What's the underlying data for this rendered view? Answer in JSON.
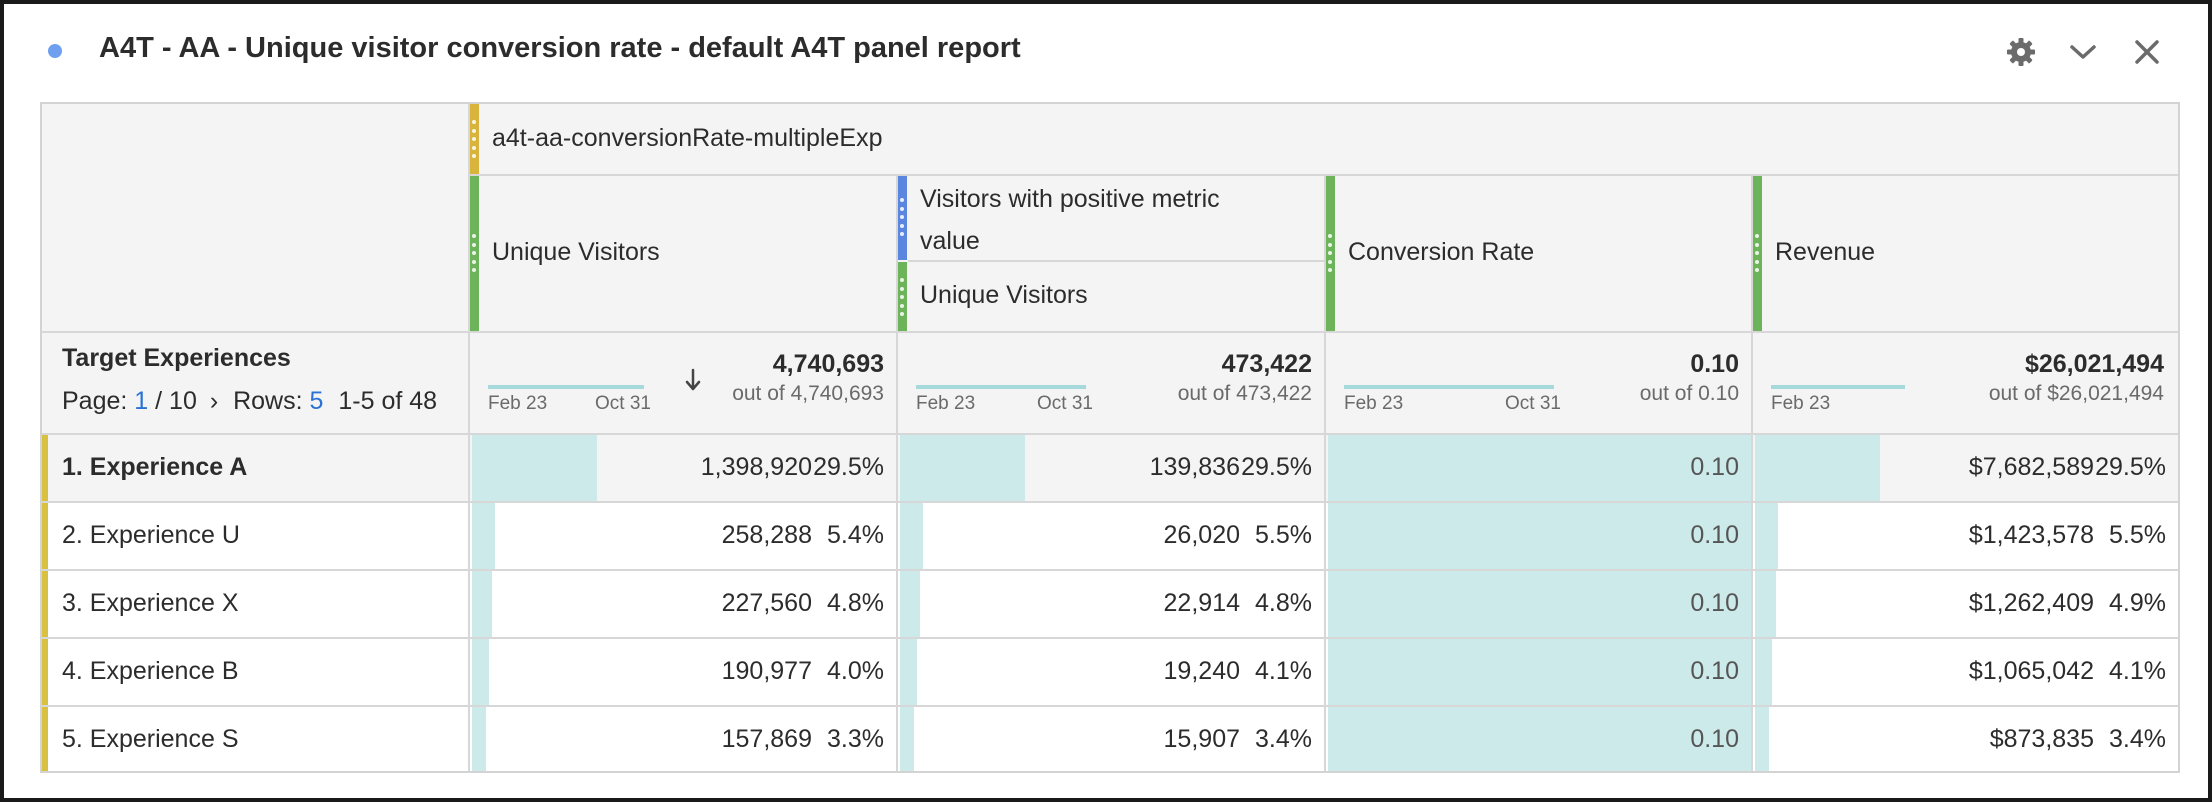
{
  "panel": {
    "title": "A4T - AA - Unique visitor conversion rate - default A4T panel report",
    "icons": [
      "gear-icon",
      "chevron-down-icon",
      "close-icon"
    ]
  },
  "segment": {
    "label": "a4t-aa-conversionRate-multipleExp",
    "color": "#d8b43c"
  },
  "columns": [
    {
      "label": "Unique Visitors",
      "total": "4,740,693",
      "out_of": "out of 4,740,693",
      "spark_start": "Feb 23",
      "spark_end": "Oct 31",
      "sorted": true
    },
    {
      "label_top": "Visitors with positive metric value",
      "label": "Unique Visitors",
      "total": "473,422",
      "out_of": "out of 473,422",
      "spark_start": "Feb 23",
      "spark_end": "Oct 31"
    },
    {
      "label": "Conversion Rate",
      "total": "0.10",
      "out_of": "out of 0.10",
      "spark_start": "Feb 23",
      "spark_end": "Oct 31"
    },
    {
      "label": "Revenue",
      "total": "$26,021,494",
      "out_of": "out of $26,021,494",
      "spark_start": "Feb 23",
      "spark_end": ""
    }
  ],
  "dimension": {
    "title": "Target Experiences",
    "page_label": "Page:",
    "page_current": "1",
    "page_total": "/ 10",
    "next_symbol": "›",
    "rows_label": "Rows:",
    "rows_value": "5",
    "range": "1-5 of 48"
  },
  "rows": [
    {
      "label": "1.  Experience A",
      "bold": true,
      "uv": "1,398,920",
      "uv_pct": "29.5%",
      "uv_frac": 0.295,
      "pv": "139,836",
      "pv_pct": "29.5%",
      "pv_frac": 0.295,
      "cr": "0.10",
      "rev": "$7,682,589",
      "rev_pct": "29.5%",
      "rev_frac": 0.295
    },
    {
      "label": "2.  Experience U",
      "bold": false,
      "uv": "258,288",
      "uv_pct": "5.4%",
      "uv_frac": 0.054,
      "pv": "26,020",
      "pv_pct": "5.5%",
      "pv_frac": 0.055,
      "cr": "0.10",
      "rev": "$1,423,578",
      "rev_pct": "5.5%",
      "rev_frac": 0.055
    },
    {
      "label": "3.  Experience X",
      "bold": false,
      "uv": "227,560",
      "uv_pct": "4.8%",
      "uv_frac": 0.048,
      "pv": "22,914",
      "pv_pct": "4.8%",
      "pv_frac": 0.048,
      "cr": "0.10",
      "rev": "$1,262,409",
      "rev_pct": "4.9%",
      "rev_frac": 0.049
    },
    {
      "label": "4.  Experience B",
      "bold": false,
      "uv": "190,977",
      "uv_pct": "4.0%",
      "uv_frac": 0.04,
      "pv": "19,240",
      "pv_pct": "4.1%",
      "pv_frac": 0.041,
      "cr": "0.10",
      "rev": "$1,065,042",
      "rev_pct": "4.1%",
      "rev_frac": 0.041
    },
    {
      "label": "5.  Experience S",
      "bold": false,
      "uv": "157,869",
      "uv_pct": "3.3%",
      "uv_frac": 0.033,
      "pv": "15,907",
      "pv_pct": "3.4%",
      "pv_frac": 0.034,
      "cr": "0.10",
      "rev": "$873,835",
      "rev_pct": "3.4%",
      "rev_frac": 0.034
    }
  ],
  "colors": {
    "accent_blue": "#2a72d6",
    "bar": "#cdeaea",
    "metric_green": "#6db35a",
    "metric_blue": "#5a86e0",
    "row_accent": "#d8c040"
  }
}
